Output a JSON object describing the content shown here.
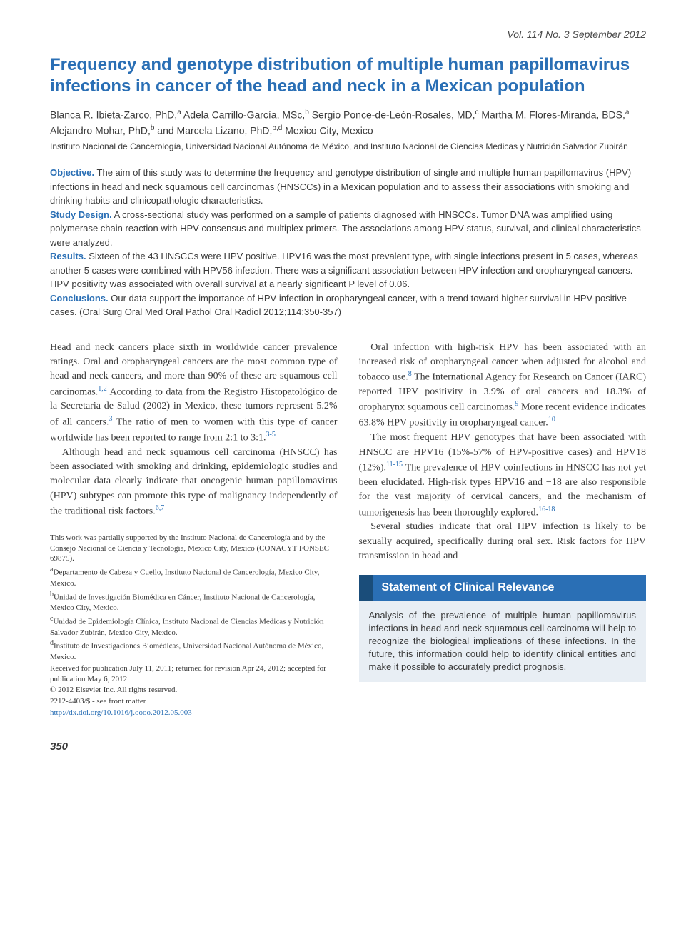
{
  "issue_line": "Vol. 114   No. 3   September 2012",
  "title": "Frequency and genotype distribution of multiple human papillomavirus infections in cancer of the head and neck in a Mexican population",
  "authors_html": "Blanca R. Ibieta-Zarco, PhD,<span class='sup'>a</span> Adela Carrillo-García, MSc,<span class='sup'>b</span> Sergio Ponce-de-León-Rosales, MD,<span class='sup'>c</span> Martha M. Flores-Miranda, BDS,<span class='sup'>a</span> Alejandro Mohar, PhD,<span class='sup'>b</span> and Marcela Lizano, PhD,<span class='sup'>b,d</span> Mexico City, Mexico",
  "affil_short": "Instituto Nacional de Cancerología, Universidad Nacional Autónoma de México, and Instituto Nacional de Ciencias Medicas y Nutrición Salvador Zubirán",
  "abstract": {
    "objective_label": "Objective.",
    "objective": "The aim of this study was to determine the frequency and genotype distribution of single and multiple human papillomavirus (HPV) infections in head and neck squamous cell carcinomas (HNSCCs) in a Mexican population and to assess their associations with smoking and drinking habits and clinicopathologic characteristics.",
    "design_label": "Study Design.",
    "design": "A cross-sectional study was performed on a sample of patients diagnosed with HNSCCs. Tumor DNA was amplified using polymerase chain reaction with HPV consensus and multiplex primers. The associations among HPV status, survival, and clinical characteristics were analyzed.",
    "results_label": "Results.",
    "results": "Sixteen of the 43 HNSCCs were HPV positive. HPV16 was the most prevalent type, with single infections present in 5 cases, whereas another 5 cases were combined with HPV56 infection. There was a significant association between HPV infection and oropharyngeal cancers. HPV positivity was associated with overall survival at a nearly significant P level of 0.06.",
    "conclusions_label": "Conclusions.",
    "conclusions": "Our data support the importance of HPV infection in oropharyngeal cancer, with a trend toward higher survival in HPV-positive cases. (Oral Surg Oral Med Oral Pathol Oral Radiol 2012;114:350-357)"
  },
  "left_col": {
    "p1": "Head and neck cancers place sixth in worldwide cancer prevalence ratings. Oral and oropharyngeal cancers are the most common type of head and neck cancers, and more than 90% of these are squamous cell carcinomas.",
    "r1": "1,2",
    "p1b": " According to data from the Registro Histopatológico de la Secretaria de Salud (2002) in Mexico, these tumors represent 5.2% of all cancers.",
    "r2": "3",
    "p1c": " The ratio of men to women with this type of cancer worldwide has been reported to range from 2:1 to 3:1.",
    "r3": "3-5",
    "p2": "Although head and neck squamous cell carcinoma (HNSCC) has been associated with smoking and drinking, epidemiologic studies and molecular data clearly indicate that oncogenic human papillomavirus (HPV) subtypes can promote this type of malignancy independently of the traditional risk factors.",
    "r4": "6,7"
  },
  "right_col": {
    "p1": "Oral infection with high-risk HPV has been associated with an increased risk of oropharyngeal cancer when adjusted for alcohol and tobacco use.",
    "r1": "8",
    "p1b": " The International Agency for Research on Cancer (IARC) reported HPV positivity in 3.9% of oral cancers and 18.3% of oropharynx squamous cell carcinomas.",
    "r2": "9",
    "p1c": " More recent evidence indicates 63.8% HPV positivity in oropharyngeal cancer.",
    "r3": "10",
    "p2": "The most frequent HPV genotypes that have been associated with HNSCC are HPV16 (15%-57% of HPV-positive cases) and HPV18 (12%).",
    "r4": "11-15",
    "p2b": " The prevalence of HPV coinfections in HNSCC has not yet been elucidated. High-risk types HPV16 and −18 are also responsible for the vast majority of cervical cancers, and the mechanism of tumorigenesis has been thoroughly explored.",
    "r5": "16-18",
    "p3": "Several studies indicate that oral HPV infection is likely to be sexually acquired, specifically during oral sex. Risk factors for HPV transmission in head and"
  },
  "footnotes": {
    "funding": "This work was partially supported by the Instituto Nacional de Cancerología and by the Consejo Nacional de Ciencia y Tecnología, Mexico City, Mexico (CONACYT FONSEC 69875).",
    "a": "Departamento de Cabeza y Cuello, Instituto Nacional de Cancerología, Mexico City, Mexico.",
    "b": "Unidad de Investigación Biomédica en Cáncer, Instituto Nacional de Cancerología, Mexico City, Mexico.",
    "c": "Unidad de Epidemiología Clínica, Instituto Nacional de Ciencias Medicas y Nutrición Salvador Zubirán, Mexico City, Mexico.",
    "d": "Instituto de Investigaciones Biomédicas, Universidad Nacional Autónoma de México, Mexico.",
    "received": "Received for publication July 11, 2011; returned for revision Apr 24, 2012; accepted for publication May 6, 2012.",
    "copyright": "© 2012 Elsevier Inc. All rights reserved.",
    "issn": "2212-4403/$ - see front matter",
    "doi": "http://dx.doi.org/10.1016/j.oooo.2012.05.003"
  },
  "relevance": {
    "title": "Statement of Clinical Relevance",
    "body": "Analysis of the prevalence of multiple human papillomavirus infections in head and neck squamous cell carcinoma will help to recognize the biological implications of these infections. In the future, this information could help to identify clinical entities and make it possible to accurately predict prognosis."
  },
  "page_number": "350",
  "colors": {
    "title_blue": "#2a6fb5",
    "box_header_bg": "#2a6fb5",
    "box_header_border": "#1a4d7a",
    "box_body_bg": "#e8eef4",
    "text": "#3a3a3a"
  },
  "typography": {
    "title_fontsize": 24,
    "body_fontsize": 14,
    "abstract_fontsize": 13,
    "footnote_fontsize": 11
  }
}
